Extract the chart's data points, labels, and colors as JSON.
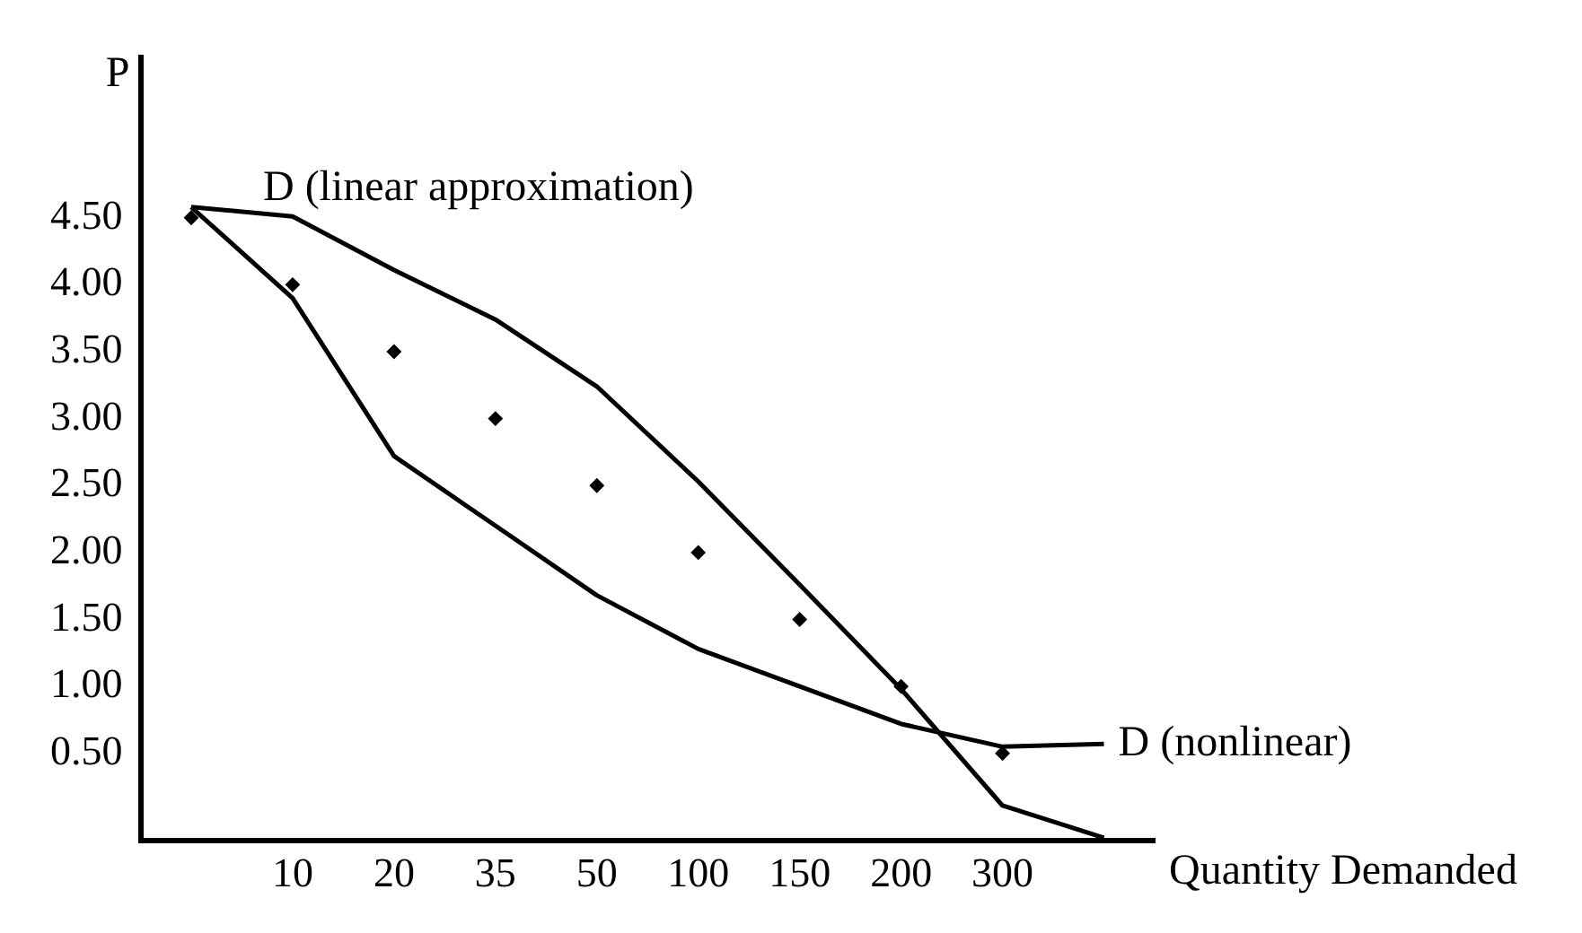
{
  "chart_data": {
    "type": "line",
    "xlabel": "Quantity Demanded",
    "ylabel": "P",
    "categories": [
      null,
      "10",
      "20",
      "35",
      "50",
      "100",
      "150",
      "200",
      "300",
      null
    ],
    "series": [
      {
        "name": "D (linear approximation)",
        "type": "line",
        "color": "#000000",
        "values": [
          4.58,
          4.51,
          4.11,
          3.74,
          3.24,
          2.53,
          1.76,
          0.98,
          0.11,
          -0.13
        ]
      },
      {
        "name": "D (nonlinear)",
        "type": "line",
        "color": "#000000",
        "values": [
          4.58,
          3.9,
          2.72,
          2.2,
          1.68,
          1.28,
          1.0,
          0.72,
          0.55,
          0.57
        ]
      },
      {
        "type": "scatter",
        "color": "#000000",
        "marker": "diamond",
        "values": [
          4.5,
          4.0,
          3.5,
          3.0,
          2.5,
          2.0,
          1.5,
          1.0,
          0.5,
          null
        ]
      }
    ],
    "ylim": [
      -0.15,
      5.7
    ],
    "yticks": [
      {
        "value": 0.5,
        "label": "0.50"
      },
      {
        "value": 1,
        "label": "1.00"
      },
      {
        "value": 1.5,
        "label": "1.50"
      },
      {
        "value": 2,
        "label": "2.00"
      },
      {
        "value": 2.5,
        "label": "2.50"
      },
      {
        "value": 3,
        "label": "3.00"
      },
      {
        "value": 3.5,
        "label": "3.50"
      },
      {
        "value": 4,
        "label": "4.00"
      },
      {
        "value": 4.5,
        "label": "4.50"
      }
    ],
    "grid": false,
    "legend": false,
    "line_style": "solid"
  }
}
